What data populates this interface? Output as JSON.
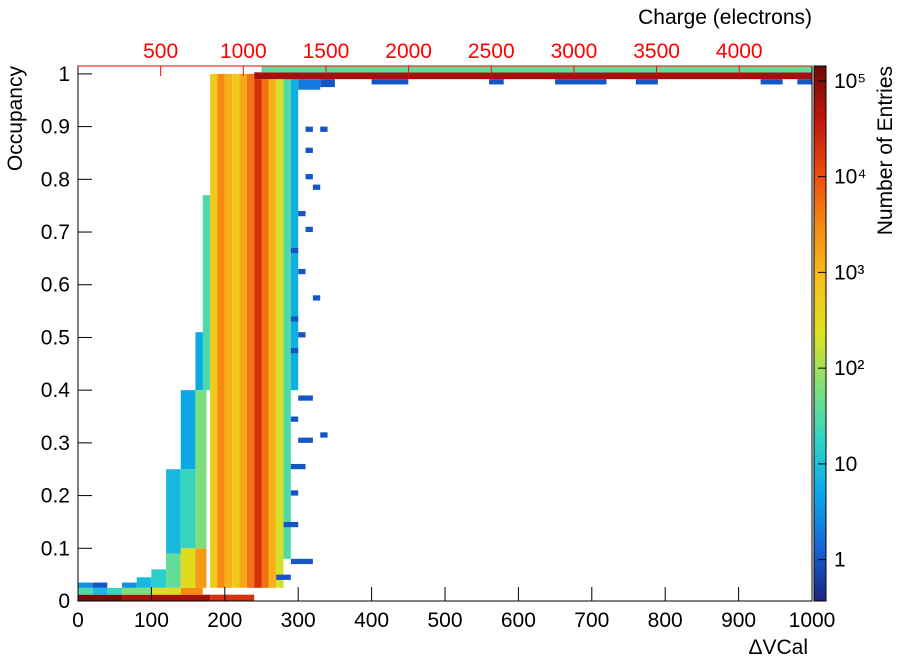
{
  "chart_data": {
    "type": "heatmap",
    "x_label": "ΔVCal",
    "y_label": "Occupancy",
    "z_label": "Number of Entries",
    "x2_label": "Charge (electrons)",
    "xlim": [
      0,
      1000
    ],
    "xticks": [
      0,
      100,
      200,
      300,
      400,
      500,
      600,
      700,
      800,
      900,
      1000
    ],
    "ylim": [
      0,
      1.015
    ],
    "yticks": [
      0,
      0.1,
      0.2,
      0.3,
      0.4,
      0.5,
      0.6,
      0.7,
      0.8,
      0.9,
      1
    ],
    "x2lim": [
      0,
      4440
    ],
    "x2ticks": [
      500,
      1000,
      1500,
      2000,
      2500,
      3000,
      3500,
      4000
    ],
    "x2_color": "#ff0000",
    "zlim": [
      0.37,
      143000
    ],
    "zlog": true,
    "zticks": [
      1,
      10,
      {
        "value": 100,
        "label": "10²"
      },
      {
        "value": 1000,
        "label": "10³"
      },
      {
        "value": 10000,
        "label": "10⁴"
      },
      {
        "value": 100000,
        "label": "10⁵"
      }
    ],
    "colorscale": [
      "#1a237e",
      "#1565d8",
      "#0aa8e8",
      "#2fd4c8",
      "#7fe07a",
      "#dde21e",
      "#f7c01a",
      "#f68a12",
      "#ec4a0c",
      "#c0150a",
      "#6e0a0a"
    ],
    "cells": [
      [
        0,
        60,
        0,
        0.012,
        120000
      ],
      [
        60,
        180,
        0,
        0.012,
        60000
      ],
      [
        180,
        240,
        0,
        0.012,
        20000
      ],
      [
        0,
        20,
        0.012,
        0.025,
        30
      ],
      [
        20,
        40,
        0.012,
        0.025,
        8
      ],
      [
        40,
        60,
        0.012,
        0.025,
        20
      ],
      [
        60,
        100,
        0.012,
        0.025,
        60
      ],
      [
        100,
        140,
        0.012,
        0.025,
        300
      ],
      [
        140,
        170,
        0.012,
        0.025,
        3000
      ],
      [
        0,
        20,
        0.025,
        0.035,
        3
      ],
      [
        20,
        40,
        0.025,
        0.035,
        1
      ],
      [
        60,
        80,
        0.025,
        0.035,
        3
      ],
      [
        80,
        100,
        0.025,
        0.045,
        8
      ],
      [
        100,
        120,
        0.025,
        0.06,
        15
      ],
      [
        120,
        140,
        0.025,
        0.09,
        40
      ],
      [
        140,
        160,
        0.025,
        0.1,
        300
      ],
      [
        160,
        175,
        0.025,
        0.1,
        2000
      ],
      [
        120,
        140,
        0.09,
        0.25,
        8
      ],
      [
        140,
        160,
        0.1,
        0.25,
        20
      ],
      [
        140,
        160,
        0.25,
        0.4,
        5
      ],
      [
        160,
        175,
        0.1,
        0.4,
        60
      ],
      [
        160,
        175,
        0.4,
        0.51,
        5
      ],
      [
        170,
        180,
        0.4,
        0.77,
        30
      ],
      [
        180,
        190,
        0.025,
        1.0,
        600
      ],
      [
        190,
        200,
        0.025,
        1.0,
        3000
      ],
      [
        200,
        210,
        0.025,
        1.0,
        1200
      ],
      [
        210,
        220,
        0.025,
        1.0,
        600
      ],
      [
        220,
        230,
        0.025,
        1.0,
        1500
      ],
      [
        230,
        240,
        0.025,
        1.0,
        5000
      ],
      [
        240,
        250,
        0.025,
        0.99,
        20000
      ],
      [
        250,
        260,
        0.025,
        0.99,
        5000
      ],
      [
        260,
        270,
        0.025,
        0.99,
        1200
      ],
      [
        270,
        280,
        0.025,
        0.99,
        200
      ],
      [
        280,
        290,
        0.08,
        0.99,
        30
      ],
      [
        290,
        300,
        0.4,
        0.99,
        6
      ],
      [
        240,
        1000,
        0.99,
        1.003,
        60000
      ],
      [
        250,
        1000,
        1.003,
        1.015,
        40
      ],
      [
        300,
        330,
        0.97,
        0.99,
        2
      ],
      [
        330,
        350,
        0.975,
        0.99,
        1
      ],
      [
        400,
        450,
        0.98,
        0.99,
        1
      ],
      [
        560,
        580,
        0.98,
        0.99,
        1
      ],
      [
        650,
        720,
        0.98,
        0.99,
        1
      ],
      [
        760,
        790,
        0.98,
        0.99,
        1
      ],
      [
        930,
        960,
        0.98,
        0.99,
        1
      ],
      [
        980,
        1000,
        0.98,
        0.99,
        1
      ],
      [
        310,
        320,
        0.89,
        0.9,
        1
      ],
      [
        330,
        340,
        0.89,
        0.9,
        1
      ],
      [
        310,
        320,
        0.85,
        0.86,
        1
      ],
      [
        310,
        320,
        0.8,
        0.81,
        1
      ],
      [
        320,
        330,
        0.78,
        0.79,
        1
      ],
      [
        310,
        320,
        0.7,
        0.71,
        1
      ],
      [
        290,
        300,
        0.66,
        0.67,
        1
      ],
      [
        300,
        310,
        0.62,
        0.63,
        1
      ],
      [
        320,
        330,
        0.57,
        0.58,
        1
      ],
      [
        290,
        300,
        0.53,
        0.54,
        1
      ],
      [
        300,
        310,
        0.5,
        0.51,
        1
      ],
      [
        290,
        300,
        0.47,
        0.48,
        1
      ],
      [
        300,
        320,
        0.38,
        0.39,
        1
      ],
      [
        290,
        300,
        0.34,
        0.35,
        1
      ],
      [
        300,
        320,
        0.3,
        0.31,
        1
      ],
      [
        290,
        310,
        0.25,
        0.26,
        1
      ],
      [
        290,
        300,
        0.2,
        0.21,
        1
      ],
      [
        280,
        300,
        0.14,
        0.15,
        1
      ],
      [
        290,
        320,
        0.07,
        0.08,
        1
      ],
      [
        270,
        290,
        0.04,
        0.05,
        1
      ],
      [
        330,
        340,
        0.31,
        0.32,
        1
      ],
      [
        300,
        310,
        0.73,
        0.74,
        1
      ]
    ]
  }
}
